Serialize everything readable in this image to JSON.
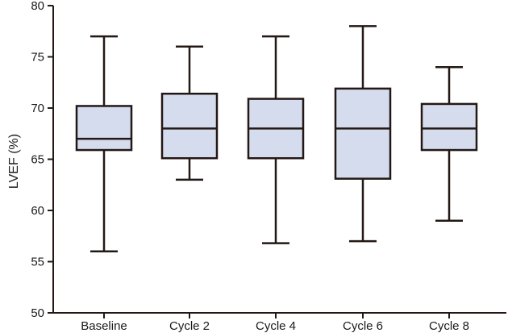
{
  "chart_data": {
    "type": "box",
    "title": "",
    "xlabel": "",
    "ylabel": "LVEF (%)",
    "ylim": [
      50,
      80
    ],
    "yticks": [
      50,
      55,
      60,
      65,
      70,
      75,
      80
    ],
    "grid": false,
    "categories": [
      "Baseline",
      "Cycle 2",
      "Cycle 4",
      "Cycle 6",
      "Cycle 8"
    ],
    "boxes": [
      {
        "min": 56,
        "q1": 65.9,
        "median": 67,
        "q3": 70.2,
        "max": 77
      },
      {
        "min": 63,
        "q1": 65.1,
        "median": 68,
        "q3": 71.4,
        "max": 76
      },
      {
        "min": 56.8,
        "q1": 65.1,
        "median": 68,
        "q3": 70.9,
        "max": 77
      },
      {
        "min": 57,
        "q1": 63.1,
        "median": 68,
        "q3": 71.9,
        "max": 78
      },
      {
        "min": 59,
        "q1": 65.9,
        "median": 68,
        "q3": 70.4,
        "max": 74
      }
    ],
    "colors": {
      "box_fill": "#d4dcee",
      "stroke": "#231815"
    }
  }
}
